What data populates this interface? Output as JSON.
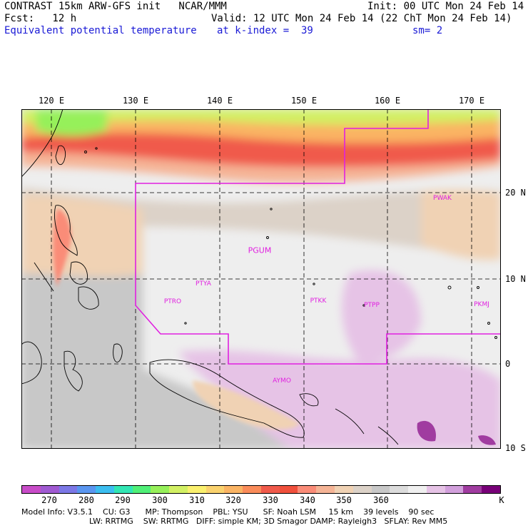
{
  "header": {
    "line1_left": "CONTRAST 15km ARW-GFS init   NCAR/MMM",
    "line1_right": "Init: 00 UTC Mon 24 Feb 14",
    "line2_left": "Fcst:   12 h",
    "line2_right": "Valid: 12 UTC Mon 24 Feb 14 (22 ChT Mon 24 Feb 14)",
    "line3_left": "Equivalent potential temperature",
    "line3_mid": "at k-index =  39",
    "line3_right": "sm= 2"
  },
  "map": {
    "lon_labels": [
      "120 E",
      "130 E",
      "140 E",
      "150 E",
      "160 E",
      "170 E"
    ],
    "lat_labels": [
      "20 N",
      "10 N",
      "0",
      "10 S"
    ],
    "stations": [
      "PWAK",
      "PGUM",
      "PTYA",
      "PTRO",
      "PTKK",
      "PTPP",
      "PKMJ",
      "AYMO"
    ]
  },
  "colorbar": {
    "colors": [
      "#c84cc8",
      "#a05ad2",
      "#7c78e6",
      "#5a96f0",
      "#3cbef0",
      "#32e6b4",
      "#50f078",
      "#96f05a",
      "#d2f064",
      "#faf06e",
      "#fad26e",
      "#fab464",
      "#fa8c5a",
      "#f05a4b",
      "#f0503c",
      "#fa8c78",
      "#f5b496",
      "#f0d2b4",
      "#dcd2c8",
      "#c8c8c8",
      "#dcdcdc",
      "#f0f0f0",
      "#e6c3e6",
      "#d2a0dc",
      "#a03ca0",
      "#780078"
    ],
    "labels": [
      "270",
      "280",
      "290",
      "300",
      "310",
      "320",
      "330",
      "340",
      "350",
      "360",
      "K"
    ]
  },
  "footer": {
    "line1": "Model Info: V3.5.1    CU: G3      MP: Thompson    PBL: YSU      SF: Noah LSM     15 km    39 levels    90 sec",
    "line2": "LW: RRTMG    SW: RRTMG   DIFF: simple KM; 3D Smagor DAMP: Rayleigh3   SFLAY: Rev MM5"
  }
}
